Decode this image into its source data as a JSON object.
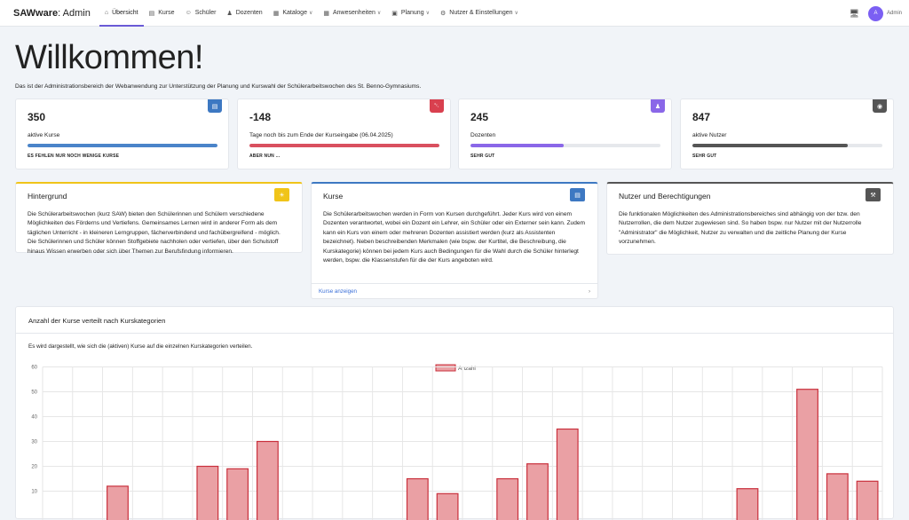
{
  "navbar": {
    "brand_bold": "SAWware",
    "brand_rest": ": Admin",
    "items": [
      {
        "label": "Übersicht",
        "icon": "home-icon",
        "active": true,
        "dropdown": false
      },
      {
        "label": "Kurse",
        "icon": "course-icon",
        "active": false,
        "dropdown": false
      },
      {
        "label": "Schüler",
        "icon": "students-icon",
        "active": false,
        "dropdown": false
      },
      {
        "label": "Dozenten",
        "icon": "lecturer-icon",
        "active": false,
        "dropdown": false
      },
      {
        "label": "Kataloge",
        "icon": "table-icon",
        "active": false,
        "dropdown": true
      },
      {
        "label": "Anwesenheiten",
        "icon": "table-icon",
        "active": false,
        "dropdown": true
      },
      {
        "label": "Planung",
        "icon": "calendar-icon",
        "active": false,
        "dropdown": true
      },
      {
        "label": "Nutzer & Einstellungen",
        "icon": "users-cog-icon",
        "active": false,
        "dropdown": true
      }
    ],
    "avatar_initial": "A",
    "user_name": "Admin"
  },
  "page": {
    "title": "Willkommen!",
    "intro": "Das ist der Administrationsbereich der Webanwendung zur Unterstützung der Planung und Kurswahl der Schülerarbeitswochen des St. Benno-Gymnasiums."
  },
  "stats": [
    {
      "value": "350",
      "label": "aktive Kurse",
      "sub": "es fehlen nur noch wenige Kurse",
      "progress": 1.0,
      "color": "#4a84c9",
      "badge_color": "#3d78c2",
      "icon": "course-icon"
    },
    {
      "value": "-148",
      "label": "Tage noch bis zum Ende der Kurseingabe (06.04.2025)",
      "sub": "aber nun ...",
      "progress": 1.0,
      "color": "#d9505f",
      "badge_color": "#d9404f",
      "icon": "bell-icon"
    },
    {
      "value": "245",
      "label": "Dozenten",
      "sub": "sehr gut",
      "progress": 0.49,
      "color": "#8a67e8",
      "badge_color": "#8a67e8",
      "icon": "lecturer-icon"
    },
    {
      "value": "847",
      "label": "aktive Nutzer",
      "sub": "sehr gut",
      "progress": 0.82,
      "color": "#555555",
      "badge_color": "#555555",
      "icon": "eye-icon"
    }
  ],
  "cards": [
    {
      "title": "Hintergrund",
      "color": "#f0c419",
      "icon": "lightbulb-icon",
      "body": "Die Schülerarbeitswochen (kurz SAW) bieten den Schülerinnen und Schülern verschiedene Möglichkeiten des Förderns und Vertiefens. Gemeinsames Lernen wird in anderer Form als dem täglichen Unterricht - in kleineren Lerngruppen, fächerverbindend und fachübergreifend - möglich. Die Schülerinnen und Schüler können Stoffgebiete nachholen oder vertiefen, über den Schulstoff hinaus Wissen erwerben oder sich über Themen zur Berufsfindung informieren."
    },
    {
      "title": "Kurse",
      "color": "#3d78c2",
      "icon": "course-icon",
      "body": "Die Schülerarbeitswochen werden in Form von Kursen durchgeführt. Jeder Kurs wird von einem Dozenten verantwortet, wobei ein Dozent ein Lehrer, ein Schüler oder ein Externer sein kann. Zudem kann ein Kurs von einem oder mehreren Dozenten assistiert werden (kurz als Assistenten bezeichnet). Neben beschreibenden Merkmalen (wie bspw. der Kurtitel, die Beschreibung, die Kurskategorie) können bei jedem Kurs auch Bedingungen für die Wahl durch die Schüler hinterlegt werden, bspw. die Klassenstufen für die der Kurs angeboten wird.",
      "footer": "Kurse anzeigen"
    },
    {
      "title": "Nutzer und Berechtigungen",
      "color": "#555555",
      "icon": "wrench-icon",
      "body": "Die funktionalen Möglichkeiten des Administrationsbereiches sind abhängig von der bzw. den Nutzerrollen, die dem Nutzer zugewiesen sind. So haben bspw. nur Nutzer mit der Nutzerrolle \"Administrator\" die Möglichkeit, Nutzer zu verwalten und die zeitliche Planung der Kurse vorzunehmen."
    }
  ],
  "chart_section": {
    "title": "Anzahl der Kurse verteilt nach Kurskategorien",
    "description": "Es wird dargestellt, wie sich die (aktiven) Kurse auf die einzelnen Kurskategorien verteilen."
  },
  "chart_data": {
    "type": "bar",
    "series": [
      {
        "name": "Anzahl",
        "values": [
          null,
          null,
          12,
          null,
          null,
          20,
          19,
          30,
          null,
          null,
          null,
          null,
          15,
          9,
          null,
          15,
          21,
          35,
          null,
          null,
          null,
          null,
          null,
          11,
          null,
          51,
          17,
          14
        ]
      }
    ],
    "ylim": [
      0,
      60
    ],
    "yticks": [
      10,
      20,
      30,
      40,
      50,
      60
    ],
    "grid": true,
    "legend": "top-center",
    "bar_fill": "#eaa0a4",
    "bar_stroke": "#c9303c"
  }
}
